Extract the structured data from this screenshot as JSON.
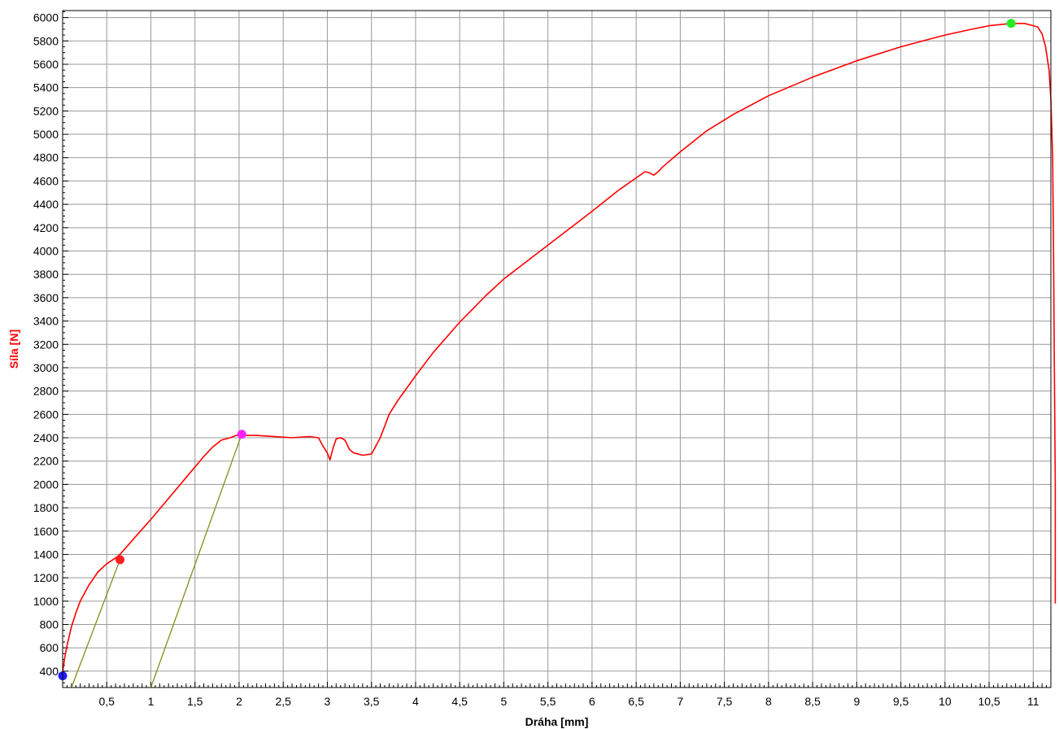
{
  "chart_data": {
    "type": "line",
    "xlabel": "Dráha [mm]",
    "ylabel": "Síla [N]",
    "xlim": [
      0,
      11.2
    ],
    "ylim": [
      260,
      6060
    ],
    "grid": true,
    "x_ticks": [
      {
        "value": 0.5,
        "label": "0,5"
      },
      {
        "value": 1,
        "label": "1"
      },
      {
        "value": 1.5,
        "label": "1,5"
      },
      {
        "value": 2,
        "label": "2"
      },
      {
        "value": 2.5,
        "label": "2,5"
      },
      {
        "value": 3,
        "label": "3"
      },
      {
        "value": 3.5,
        "label": "3,5"
      },
      {
        "value": 4,
        "label": "4"
      },
      {
        "value": 4.5,
        "label": "4,5"
      },
      {
        "value": 5,
        "label": "5"
      },
      {
        "value": 5.5,
        "label": "5,5"
      },
      {
        "value": 6,
        "label": "6"
      },
      {
        "value": 6.5,
        "label": "6,5"
      },
      {
        "value": 7,
        "label": "7"
      },
      {
        "value": 7.5,
        "label": "7,5"
      },
      {
        "value": 8,
        "label": "8"
      },
      {
        "value": 8.5,
        "label": "8,5"
      },
      {
        "value": 9,
        "label": "9"
      },
      {
        "value": 9.5,
        "label": "9,5"
      },
      {
        "value": 10,
        "label": "10"
      },
      {
        "value": 10.5,
        "label": "10,5"
      },
      {
        "value": 11,
        "label": "11"
      }
    ],
    "y_ticks": [
      400,
      600,
      800,
      1000,
      1200,
      1400,
      1600,
      1800,
      2000,
      2200,
      2400,
      2600,
      2800,
      3000,
      3200,
      3400,
      3600,
      3800,
      4000,
      4200,
      4400,
      4600,
      4800,
      5000,
      5200,
      5400,
      5600,
      5800,
      6000
    ],
    "series": [
      {
        "color": "#ff0000",
        "x": [
          0.0,
          0.02,
          0.05,
          0.1,
          0.15,
          0.2,
          0.3,
          0.4,
          0.5,
          0.6,
          0.65,
          0.8,
          1.0,
          1.2,
          1.4,
          1.6,
          1.7,
          1.8,
          1.9,
          2.0,
          2.05,
          2.2,
          2.4,
          2.6,
          2.8,
          2.9,
          2.95,
          3.0,
          3.03,
          3.06,
          3.1,
          3.15,
          3.2,
          3.25,
          3.3,
          3.4,
          3.5,
          3.53,
          3.6,
          3.65,
          3.7,
          3.8,
          4.0,
          4.2,
          4.5,
          4.8,
          5.0,
          5.5,
          6.0,
          6.3,
          6.6,
          6.65,
          6.7,
          6.75,
          6.8,
          7.0,
          7.3,
          7.6,
          8.0,
          8.5,
          9.0,
          9.5,
          10.0,
          10.3,
          10.5,
          10.75,
          10.9,
          11.0,
          11.05,
          11.1,
          11.14,
          11.18,
          11.2,
          11.22,
          11.23,
          11.24,
          11.25,
          11.25
        ],
        "y": [
          390,
          500,
          620,
          780,
          900,
          1000,
          1140,
          1250,
          1320,
          1370,
          1400,
          1530,
          1700,
          1880,
          2060,
          2240,
          2320,
          2380,
          2400,
          2430,
          2420,
          2420,
          2410,
          2400,
          2410,
          2400,
          2330,
          2270,
          2210,
          2300,
          2390,
          2400,
          2380,
          2300,
          2270,
          2250,
          2260,
          2300,
          2400,
          2500,
          2600,
          2720,
          2930,
          3130,
          3390,
          3620,
          3760,
          4050,
          4340,
          4520,
          4680,
          4670,
          4650,
          4680,
          4720,
          4850,
          5030,
          5170,
          5330,
          5490,
          5630,
          5750,
          5850,
          5900,
          5930,
          5950,
          5950,
          5930,
          5920,
          5860,
          5750,
          5550,
          5300,
          4800,
          4000,
          3000,
          2000,
          980
        ]
      }
    ],
    "markers": [
      {
        "x": 0.0,
        "y": 360,
        "color": "#1f1fff"
      },
      {
        "x": 0.65,
        "y": 1355,
        "color": "#ff2020"
      },
      {
        "x": 2.03,
        "y": 2430,
        "color": "#ff22ff"
      },
      {
        "x": 10.75,
        "y": 5950,
        "color": "#22ee22"
      }
    ],
    "offset_lines": [
      {
        "x1": 0.1,
        "y1": 260,
        "x2": 0.65,
        "y2": 1355,
        "color": "#8a8a1a"
      },
      {
        "x1": 1.0,
        "y1": 260,
        "x2": 2.03,
        "y2": 2430,
        "color": "#8a8a1a"
      }
    ]
  }
}
